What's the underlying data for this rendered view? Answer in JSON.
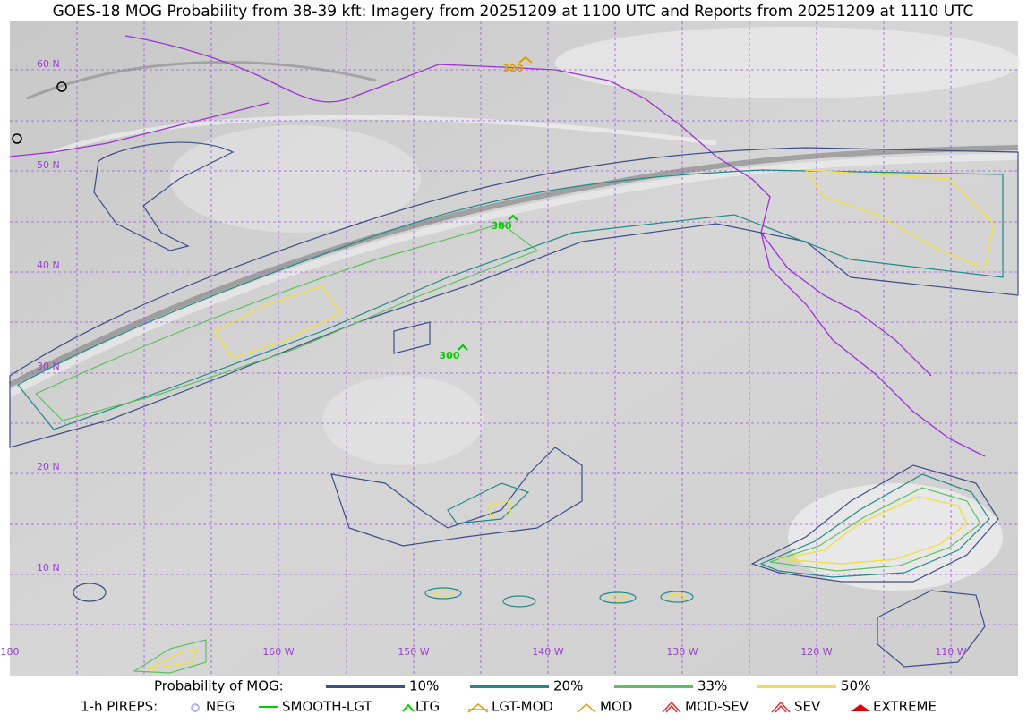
{
  "header": {
    "title": "GOES-18 MOG Probability from 38-39 kft: Imagery from 20251209 at 1100 UTC and Reports from 20251209 at 1110 UTC"
  },
  "map": {
    "lat_labels": [
      "60 N",
      "50 N",
      "40 N",
      "30 N",
      "20 N",
      "10 N"
    ],
    "lon_labels": [
      "180",
      "160 W",
      "150 W",
      "140 W",
      "130 W",
      "120 W",
      "110 W"
    ],
    "pirep_labels": [
      "320",
      "380",
      "300"
    ]
  },
  "legend": {
    "probability": {
      "label": "Probability of MOG:",
      "items": [
        "10%",
        "20%",
        "33%",
        "50%"
      ]
    },
    "pireps": {
      "label": "1-h PIREPS:",
      "items": [
        "NEG",
        "SMOOTH-LGT",
        "LTG",
        "LGT-MOD",
        "MOD",
        "MOD-SEV",
        "SEV",
        "EXTREME"
      ]
    }
  }
}
